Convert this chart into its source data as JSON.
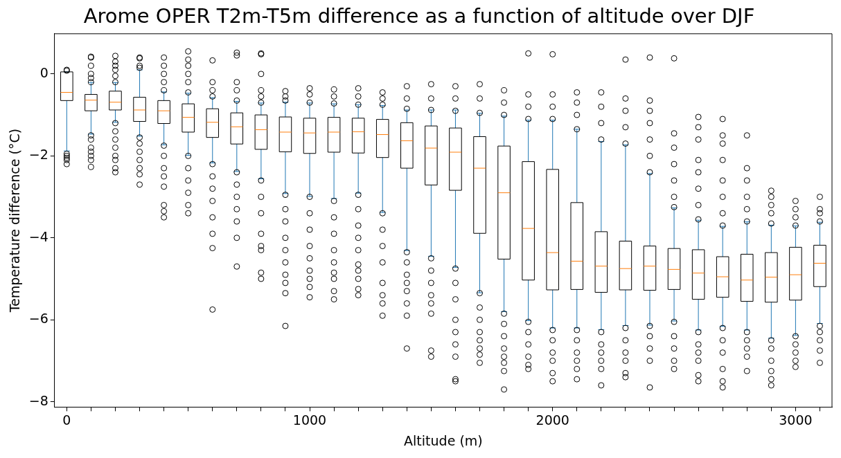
{
  "chart_data": {
    "type": "box",
    "title": "Arome OPER T2m-T5m difference as a function of altitude over DJF",
    "xlabel": "Altitude (m)",
    "ylabel": "Temperature difference (°C)",
    "x": [
      0,
      100,
      200,
      300,
      400,
      500,
      600,
      700,
      800,
      900,
      1000,
      1100,
      1200,
      1300,
      1400,
      1500,
      1600,
      1700,
      1800,
      1900,
      2000,
      2100,
      2200,
      2300,
      2400,
      2500,
      2600,
      2700,
      2800,
      2900,
      3000,
      3100
    ],
    "xlim": [
      -50,
      3150
    ],
    "xticks": [
      0,
      {
        "value": 100,
        "label": null
      },
      {
        "value": 200,
        "label": null
      },
      {
        "value": 300,
        "label": null
      },
      {
        "value": 400,
        "label": null
      },
      {
        "value": 500,
        "label": null
      },
      {
        "value": 600,
        "label": null
      },
      {
        "value": 700,
        "label": null
      },
      {
        "value": 800,
        "label": null
      },
      {
        "value": 900,
        "label": null
      },
      1000,
      {
        "value": 1100,
        "label": null
      },
      {
        "value": 1200,
        "label": null
      },
      {
        "value": 1300,
        "label": null
      },
      {
        "value": 1400,
        "label": null
      },
      {
        "value": 1500,
        "label": null
      },
      {
        "value": 1600,
        "label": null
      },
      {
        "value": 1700,
        "label": null
      },
      {
        "value": 1800,
        "label": null
      },
      {
        "value": 1900,
        "label": null
      },
      2000,
      {
        "value": 2100,
        "label": null
      },
      {
        "value": 2200,
        "label": null
      },
      {
        "value": 2300,
        "label": null
      },
      {
        "value": 2400,
        "label": null
      },
      {
        "value": 2500,
        "label": null
      },
      {
        "value": 2600,
        "label": null
      },
      {
        "value": 2700,
        "label": null
      },
      {
        "value": 2800,
        "label": null
      },
      {
        "value": 2900,
        "label": null
      },
      3000,
      {
        "value": 3100,
        "label": null
      }
    ],
    "ylim": [
      -8.13,
      0.98
    ],
    "yticks": [
      {
        "value": -8,
        "label": "−8"
      },
      {
        "value": -6,
        "label": "−6"
      },
      {
        "value": -4,
        "label": "−4"
      },
      {
        "value": -2,
        "label": "−2"
      },
      0
    ],
    "series": [
      {
        "color": "#000000",
        "boxes": [
          {
            "low": -1.88,
            "q1": -0.65,
            "median": -0.45,
            "q3": 0.05,
            "high": 0.05,
            "outliers": [
              0.08,
              0.1,
              -1.95,
              -2.0,
              -2.05,
              -2.1,
              -2.2
            ]
          },
          {
            "low": -1.47,
            "q1": -0.9,
            "median": -0.64,
            "q3": -0.5,
            "high": -0.21,
            "outliers": [
              -0.2,
              -0.1,
              0,
              0.2,
              0.4,
              0.42,
              -1.5,
              -1.6,
              -1.8,
              -1.9,
              -2.0,
              -2.1,
              -2.27
            ]
          },
          {
            "low": -1.18,
            "q1": -0.88,
            "median": -0.69,
            "q3": -0.42,
            "high": -0.21,
            "outliers": [
              -0.2,
              -0.05,
              0.1,
              0.2,
              0.3,
              0.44,
              -1.2,
              -1.4,
              -1.6,
              -1.8,
              -2.0,
              -2.1,
              -2.3,
              -2.4
            ]
          },
          {
            "low": -1.52,
            "q1": -1.16,
            "median": -0.88,
            "q3": -0.57,
            "high": 0.1,
            "outliers": [
              0.15,
              0.2,
              0.38,
              0.4,
              -1.55,
              -1.7,
              -1.9,
              -2.1,
              -2.3,
              -2.45,
              -2.7
            ]
          },
          {
            "low": -1.73,
            "q1": -1.21,
            "median": -0.9,
            "q3": -0.65,
            "high": -0.44,
            "outliers": [
              -0.4,
              -0.2,
              0,
              0.2,
              0.4,
              -1.75,
              -2.0,
              -2.3,
              -2.5,
              -2.75,
              -3.2,
              -3.35,
              -3.5
            ]
          },
          {
            "low": -1.99,
            "q1": -1.42,
            "median": -1.06,
            "q3": -0.73,
            "high": -0.47,
            "outliers": [
              -0.45,
              -0.2,
              0,
              0.2,
              0.35,
              0.55,
              -2.0,
              -2.3,
              -2.6,
              -2.9,
              -3.2,
              -3.4
            ]
          },
          {
            "low": -2.17,
            "q1": -1.55,
            "median": -1.18,
            "q3": -0.85,
            "high": -0.58,
            "outliers": [
              -0.55,
              -0.4,
              -0.2,
              0.33,
              -2.2,
              -2.5,
              -2.8,
              -3.1,
              -3.5,
              -3.9,
              -4.25,
              -5.75
            ]
          },
          {
            "low": -2.38,
            "q1": -1.71,
            "median": -1.29,
            "q3": -0.95,
            "high": -0.67,
            "outliers": [
              -0.65,
              -0.4,
              -0.2,
              0.45,
              0.52,
              -2.4,
              -2.7,
              -3.0,
              -3.3,
              -3.6,
              -4.0,
              -4.7
            ]
          },
          {
            "low": -2.56,
            "q1": -1.84,
            "median": -1.36,
            "q3": -1.0,
            "high": -0.71,
            "outliers": [
              -0.7,
              -0.55,
              -0.4,
              0,
              0.48,
              0.5,
              -2.6,
              -3.0,
              -3.4,
              -3.9,
              -4.2,
              -4.3,
              -4.85,
              -5.0
            ]
          },
          {
            "low": -2.92,
            "q1": -1.9,
            "median": -1.42,
            "q3": -1.05,
            "high": -0.69,
            "outliers": [
              -0.65,
              -0.55,
              -0.42,
              -2.95,
              -3.3,
              -3.6,
              -4.0,
              -4.3,
              -4.6,
              -4.9,
              -5.1,
              -5.35,
              -6.15
            ]
          },
          {
            "low": -2.99,
            "q1": -1.94,
            "median": -1.44,
            "q3": -1.08,
            "high": -0.71,
            "outliers": [
              -0.7,
              -0.5,
              -0.35,
              -3.0,
              -3.4,
              -3.8,
              -4.2,
              -4.5,
              -4.8,
              -5.0,
              -5.2,
              -5.45
            ]
          },
          {
            "low": -3.04,
            "q1": -1.91,
            "median": -1.42,
            "q3": -1.06,
            "high": -0.73,
            "outliers": [
              -0.72,
              -0.55,
              -0.38,
              -3.1,
              -3.5,
              -3.9,
              -4.3,
              -4.6,
              -4.85,
              -5.0,
              -5.3,
              -5.5
            ]
          },
          {
            "low": -2.91,
            "q1": -1.93,
            "median": -1.41,
            "q3": -1.08,
            "high": -0.75,
            "outliers": [
              -0.75,
              -0.55,
              -0.35,
              -2.95,
              -3.3,
              -3.7,
              -4.0,
              -4.3,
              -4.65,
              -4.8,
              -5.0,
              -5.25,
              -5.4
            ]
          },
          {
            "low": -3.38,
            "q1": -2.04,
            "median": -1.48,
            "q3": -1.11,
            "high": -0.77,
            "outliers": [
              -0.75,
              -0.6,
              -0.45,
              -3.4,
              -3.8,
              -4.2,
              -4.6,
              -5.1,
              -5.4,
              -5.6,
              -5.9
            ]
          },
          {
            "low": -4.31,
            "q1": -2.3,
            "median": -1.63,
            "q3": -1.19,
            "high": -0.88,
            "outliers": [
              -0.85,
              -0.6,
              -0.3,
              -4.35,
              -4.6,
              -4.9,
              -5.1,
              -5.3,
              -5.6,
              -5.9,
              -6.7
            ]
          },
          {
            "low": -4.45,
            "q1": -2.71,
            "median": -1.81,
            "q3": -1.27,
            "high": -0.88,
            "outliers": [
              -0.88,
              -0.6,
              -0.25,
              -4.5,
              -4.8,
              -5.1,
              -5.4,
              -5.6,
              -5.85,
              -6.75,
              -6.9
            ]
          },
          {
            "low": -4.72,
            "q1": -2.84,
            "median": -1.91,
            "q3": -1.32,
            "high": -0.88,
            "outliers": [
              -0.9,
              -0.6,
              -0.3,
              -4.75,
              -5.1,
              -5.5,
              -6.0,
              -6.3,
              -6.6,
              -6.9,
              -7.45,
              -7.5
            ]
          },
          {
            "low": -5.34,
            "q1": -3.89,
            "median": -2.3,
            "q3": -1.53,
            "high": -0.96,
            "outliers": [
              -0.95,
              -0.6,
              -0.25,
              -5.35,
              -5.7,
              -6.0,
              -6.3,
              -6.5,
              -6.7,
              -6.85,
              -7.05
            ]
          },
          {
            "low": -5.8,
            "q1": -4.52,
            "median": -2.9,
            "q3": -1.76,
            "high": -1.03,
            "outliers": [
              -1.0,
              -0.7,
              -0.4,
              -5.85,
              -6.1,
              -6.4,
              -6.7,
              -6.9,
              -7.05,
              -7.25,
              -7.7
            ]
          },
          {
            "low": -6.02,
            "q1": -5.03,
            "median": -3.77,
            "q3": -2.14,
            "high": -1.13,
            "outliers": [
              -1.1,
              -0.8,
              -0.5,
              0.5,
              -6.05,
              -6.3,
              -6.6,
              -6.9,
              -7.1,
              -7.2
            ]
          },
          {
            "low": -6.2,
            "q1": -5.27,
            "median": -4.36,
            "q3": -2.33,
            "high": -1.13,
            "outliers": [
              -1.1,
              -0.8,
              -0.5,
              0.48,
              -6.25,
              -6.5,
              -6.8,
              -7.0,
              -7.3,
              -7.5
            ]
          },
          {
            "low": -6.2,
            "q1": -5.26,
            "median": -4.57,
            "q3": -3.14,
            "high": -1.35,
            "outliers": [
              -1.35,
              -1.0,
              -0.7,
              -0.45,
              -6.25,
              -6.5,
              -6.8,
              -7.0,
              -7.2,
              -7.45
            ]
          },
          {
            "low": -6.24,
            "q1": -5.33,
            "median": -4.69,
            "q3": -3.85,
            "high": -1.65,
            "outliers": [
              -1.6,
              -1.2,
              -0.8,
              -0.45,
              -6.3,
              -6.6,
              -6.8,
              -7.0,
              -7.2,
              -7.6
            ]
          },
          {
            "low": -6.14,
            "q1": -5.27,
            "median": -4.75,
            "q3": -4.08,
            "high": -1.73,
            "outliers": [
              -1.7,
              -1.3,
              -0.9,
              -0.6,
              0.35,
              -6.2,
              -6.5,
              -6.8,
              -7.0,
              -7.3,
              -7.4
            ]
          },
          {
            "low": -6.13,
            "q1": -5.28,
            "median": -4.69,
            "q3": -4.2,
            "high": -2.43,
            "outliers": [
              -2.4,
              -2.0,
              -1.6,
              -1.2,
              -0.9,
              -0.65,
              0.4,
              -6.15,
              -6.4,
              -6.7,
              -7.0,
              -7.65
            ]
          },
          {
            "low": -6.03,
            "q1": -5.26,
            "median": -4.77,
            "q3": -4.26,
            "high": -3.27,
            "outliers": [
              -3.25,
              -3.0,
              -2.6,
              -2.2,
              -1.8,
              -1.45,
              0.38,
              -6.05,
              -6.4,
              -6.7,
              -7.0,
              -7.2
            ]
          },
          {
            "low": -6.25,
            "q1": -5.5,
            "median": -4.86,
            "q3": -4.29,
            "high": -3.57,
            "outliers": [
              -3.55,
              -3.2,
              -2.8,
              -2.4,
              -2.1,
              -1.6,
              -1.3,
              -1.05,
              -6.3,
              -6.6,
              -6.8,
              -7.0,
              -7.35,
              -7.5
            ]
          },
          {
            "low": -6.16,
            "q1": -5.45,
            "median": -4.95,
            "q3": -4.46,
            "high": -3.72,
            "outliers": [
              -3.7,
              -3.4,
              -3.0,
              -2.6,
              -2.1,
              -1.7,
              -1.5,
              -1.1,
              -6.2,
              -6.5,
              -6.8,
              -7.2,
              -7.5,
              -7.65
            ]
          },
          {
            "low": -6.25,
            "q1": -5.55,
            "median": -5.03,
            "q3": -4.4,
            "high": -3.61,
            "outliers": [
              -3.6,
              -3.3,
              -3.0,
              -2.6,
              -2.3,
              -1.5,
              -6.3,
              -6.5,
              -6.7,
              -6.9,
              -7.25
            ]
          },
          {
            "low": -6.45,
            "q1": -5.57,
            "median": -4.96,
            "q3": -4.36,
            "high": -3.69,
            "outliers": [
              -3.65,
              -3.4,
              -3.2,
              -3.0,
              -2.85,
              -6.5,
              -6.7,
              -7.0,
              -7.25,
              -7.45,
              -7.6
            ]
          },
          {
            "low": -6.38,
            "q1": -5.52,
            "median": -4.9,
            "q3": -4.23,
            "high": -3.71,
            "outliers": [
              -3.7,
              -3.5,
              -3.3,
              -3.1,
              -6.4,
              -6.6,
              -6.8,
              -7.0,
              -7.15
            ]
          },
          {
            "low": -6.09,
            "q1": -5.19,
            "median": -4.62,
            "q3": -4.18,
            "high": -3.62,
            "outliers": [
              -3.6,
              -3.4,
              -3.3,
              -3.0,
              -6.15,
              -6.3,
              -6.5,
              -6.75,
              -7.05
            ]
          }
        ]
      }
    ]
  }
}
